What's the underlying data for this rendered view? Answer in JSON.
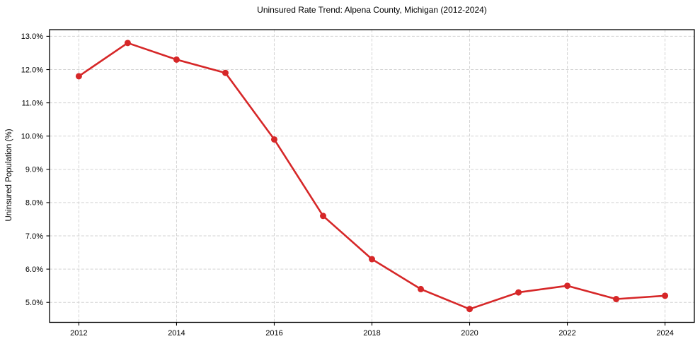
{
  "chart_data": {
    "type": "line",
    "title": "Uninsured Rate Trend: Alpena County, Michigan (2012-2024)",
    "xlabel": "",
    "ylabel": "Uninsured Population (%)",
    "x": [
      2012,
      2013,
      2014,
      2015,
      2016,
      2017,
      2018,
      2019,
      2020,
      2021,
      2022,
      2023,
      2024
    ],
    "values": [
      11.8,
      12.8,
      12.3,
      11.9,
      9.9,
      7.6,
      6.3,
      5.4,
      4.8,
      5.3,
      5.5,
      5.1,
      5.2
    ],
    "xlim": [
      2011.4,
      2024.6
    ],
    "ylim": [
      4.4,
      13.2
    ],
    "xticks": {
      "values": [
        2012,
        2014,
        2016,
        2018,
        2020,
        2022,
        2024
      ],
      "labels": [
        "2012",
        "2014",
        "2016",
        "2018",
        "2020",
        "2022",
        "2024"
      ]
    },
    "yticks": {
      "values": [
        5,
        6,
        7,
        8,
        9,
        10,
        11,
        12,
        13
      ],
      "labels": [
        "5.0%",
        "6.0%",
        "7.0%",
        "8.0%",
        "9.0%",
        "10.0%",
        "11.0%",
        "12.0%",
        "13.0%"
      ]
    },
    "grid": true,
    "grid_style": "dashed",
    "legend": false,
    "colors": {
      "line": "#d62728",
      "marker": "#d62728",
      "grid": "#d3d3d3",
      "frame": "#000000",
      "text": "#000000",
      "background": "#ffffff"
    }
  }
}
